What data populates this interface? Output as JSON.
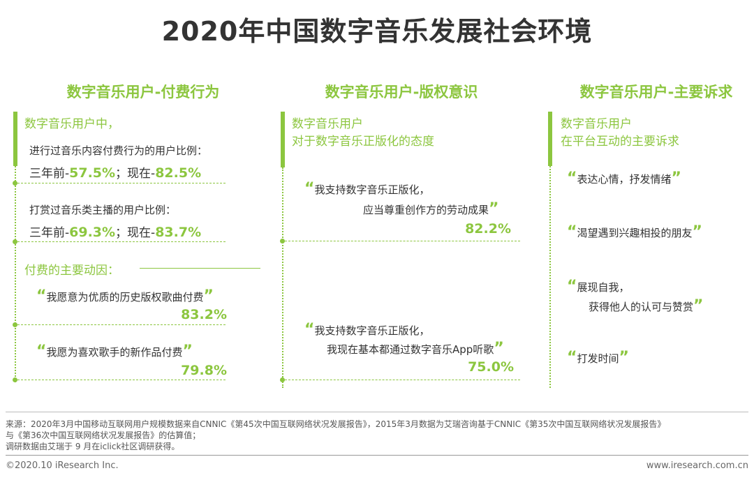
{
  "title": "2020年中国数字音乐发展社会环境",
  "col1": {
    "heading": "数字音乐用户-付费行为",
    "intro": "数字音乐用户中，",
    "stat1_label": "进行过音乐内容付费行为的用户比例：",
    "stat1_before_label": "三年前-",
    "stat1_before_value": "57.5%",
    "stat1_sep": "；现在-",
    "stat1_now_value": "82.5%",
    "stat2_label": "打赏过音乐类主播的用户比例：",
    "stat2_before_label": "三年前-",
    "stat2_before_value": "69.3%",
    "stat2_sep": "；现在-",
    "stat2_now_value": "83.7%",
    "motive_heading": "付费的主要动因：",
    "motive1_text": "我愿意为优质的历史版权歌曲付费",
    "motive1_value": "83.2%",
    "motive2_text": "我愿为喜欢歌手的新作品付费",
    "motive2_value": "79.8%"
  },
  "col2": {
    "heading": "数字音乐用户-版权意识",
    "intro_line1": "数字音乐用户",
    "intro_line2": "对于数字音乐正版化的态度",
    "q1_line1": "我支持数字音乐正版化，",
    "q1_line2": "应当尊重创作方的劳动成果",
    "q1_value": "82.2%",
    "q2_line1": "我支持数字音乐正版化，",
    "q2_line2": "我现在基本都通过数字音乐App听歌",
    "q2_value": "75.0%"
  },
  "col3": {
    "heading": "数字音乐用户-主要诉求",
    "intro_line1": "数字音乐用户",
    "intro_line2": "在平台互动的主要诉求",
    "d1": "表达心情，抒发情绪",
    "d2": "渴望遇到兴趣相投的朋友",
    "d3_line1": "展现自我，",
    "d3_line2": "获得他人的认可与赞赏",
    "d4": "打发时间"
  },
  "quote_open": "“",
  "quote_close": "”",
  "source": {
    "line1": "来源：2020年3月中国移动互联网用户规模数据来自CNNIC《第45次中国互联网络状况发展报告》，2015年3月数据为艾瑞咨询基于CNNIC《第35次中国互联网络状况发展报告》",
    "line2": "与《第36次中国互联网络状况发展报告》的估算值；",
    "line3": "调研数据由艾瑞于 9 月在iclick社区调研获得。"
  },
  "footer": {
    "copyright": "©2020.10 iResearch Inc.",
    "website": "www.iresearch.com.cn"
  },
  "colors": {
    "accent": "#8cc63f",
    "text": "#333333"
  }
}
